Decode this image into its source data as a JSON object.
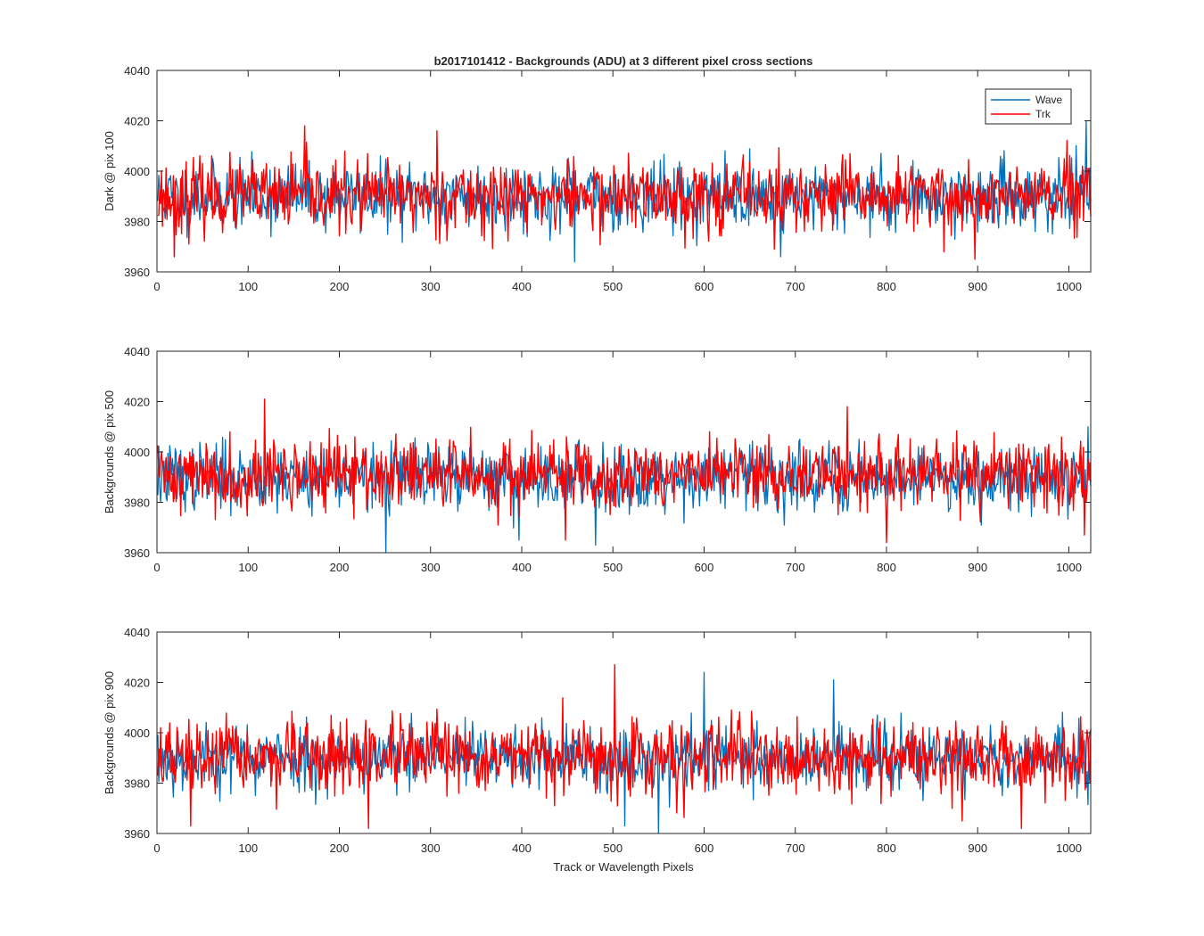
{
  "chart_data": [
    {
      "type": "line",
      "title": "b2017101412 - Backgrounds (ADU) at 3 different pixel cross sections",
      "xlabel": "",
      "ylabel": "Dark @ pix 100",
      "xlim": [
        0,
        1024
      ],
      "ylim": [
        3960,
        4040
      ],
      "xticks": [
        0,
        100,
        200,
        300,
        400,
        500,
        600,
        700,
        800,
        900,
        1000
      ],
      "yticks": [
        3960,
        3980,
        4000,
        4020,
        4040
      ],
      "legend": "top-right",
      "series": [
        {
          "name": "Wave",
          "color": "#0072BD",
          "mean": 3990,
          "spread": 6.5,
          "points": 1024,
          "seed": 11,
          "spikes": [
            [
              1018,
              4020
            ],
            [
              457,
              3964
            ],
            [
              683,
              3966
            ],
            [
              18,
              3966
            ]
          ]
        },
        {
          "name": "Trk",
          "color": "#FF0000",
          "mean": 3990,
          "spread": 7,
          "points": 1024,
          "seed": 23,
          "spikes": [
            [
              161,
              4018
            ],
            [
              306,
              4016
            ],
            [
              896,
              3965
            ],
            [
              862,
              3968
            ],
            [
              18,
              3966
            ],
            [
              676,
              3969
            ]
          ]
        }
      ]
    },
    {
      "type": "line",
      "title": "",
      "xlabel": "",
      "ylabel": "Backgrounds @ pix 500",
      "xlim": [
        0,
        1024
      ],
      "ylim": [
        3960,
        4040
      ],
      "xticks": [
        0,
        100,
        200,
        300,
        400,
        500,
        600,
        700,
        800,
        900,
        1000
      ],
      "yticks": [
        3960,
        3980,
        4000,
        4020,
        4040
      ],
      "legend": "none",
      "series": [
        {
          "name": "Wave",
          "color": "#0072BD",
          "mean": 3990,
          "spread": 6.5,
          "points": 1024,
          "seed": 37,
          "spikes": [
            [
              250,
              3960
            ],
            [
              1020,
              4010
            ],
            [
              480,
              3963
            ],
            [
              396,
              3965
            ]
          ]
        },
        {
          "name": "Trk",
          "color": "#FF0000",
          "mean": 3991,
          "spread": 7,
          "points": 1024,
          "seed": 41,
          "spikes": [
            [
              117,
              4021
            ],
            [
              756,
              4018
            ],
            [
              799,
              3964
            ],
            [
              1016,
              3967
            ],
            [
              447,
              3965
            ]
          ]
        }
      ]
    },
    {
      "type": "line",
      "title": "",
      "xlabel": "Track or Wavelength Pixels",
      "ylabel": "Backgrounds @ pix 900",
      "xlim": [
        0,
        1024
      ],
      "ylim": [
        3960,
        4040
      ],
      "xticks": [
        0,
        100,
        200,
        300,
        400,
        500,
        600,
        700,
        800,
        900,
        1000
      ],
      "yticks": [
        3960,
        3980,
        4000,
        4020,
        4040
      ],
      "legend": "none",
      "series": [
        {
          "name": "Wave",
          "color": "#0072BD",
          "mean": 3990,
          "spread": 6.5,
          "points": 1024,
          "seed": 53,
          "spikes": [
            [
              549,
              3960
            ],
            [
              599,
              4024
            ],
            [
              741,
              4021
            ],
            [
              512,
              3963
            ]
          ]
        },
        {
          "name": "Trk",
          "color": "#FF0000",
          "mean": 3990,
          "spread": 7,
          "points": 1024,
          "seed": 67,
          "spikes": [
            [
              501,
              4027
            ],
            [
              231,
              3962
            ],
            [
              36,
              3963
            ],
            [
              947,
              3962
            ],
            [
              882,
              3965
            ]
          ]
        }
      ]
    }
  ]
}
